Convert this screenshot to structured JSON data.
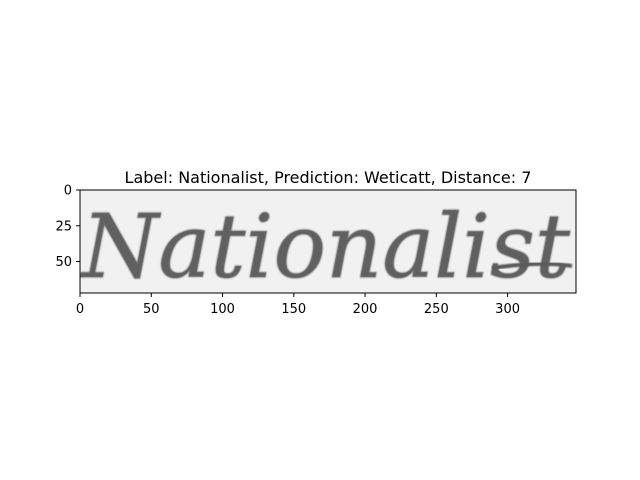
{
  "chart_data": {
    "type": "image",
    "title": "Label: Nationalist, Prediction: Weticatt, Distance: 7",
    "image_content": "Nationalist",
    "image_width": 348,
    "image_height": 72,
    "xlim": [
      0,
      348
    ],
    "ylim": [
      72,
      0
    ],
    "x_ticks": [
      0,
      50,
      100,
      150,
      200,
      250,
      300
    ],
    "y_ticks": [
      0,
      25,
      50
    ],
    "grid": false
  }
}
